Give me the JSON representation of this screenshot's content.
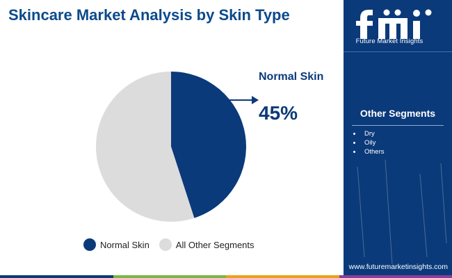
{
  "title": "Skincare Market Analysis by Skin Type",
  "chart_data": {
    "type": "pie",
    "labels": [
      "Normal Skin",
      "All Other Segments"
    ],
    "values": [
      45,
      55
    ],
    "colors": [
      "#0b3a7a",
      "#dcdcdc"
    ],
    "legend_position": "bottom",
    "callout": {
      "label": "Normal Skin",
      "value": "45%"
    }
  },
  "legend": [
    {
      "label": "Normal Skin",
      "color": "#0b3a7a"
    },
    {
      "label": "All Other Segments",
      "color": "#dcdcdc"
    }
  ],
  "side_panel": {
    "logo_text": "Future Market Insights",
    "logo_icon": "fmi-logo-icon",
    "segments_title": "Other Segments",
    "segments": [
      "Dry",
      "Oily",
      "Others"
    ],
    "url": "www.futuremarketinsights.com",
    "background_color": "#0b3a7a"
  },
  "bottom_bar_colors": [
    "#0b3a7a",
    "#7ab648",
    "#e8a21c",
    "#8a3e9a"
  ]
}
